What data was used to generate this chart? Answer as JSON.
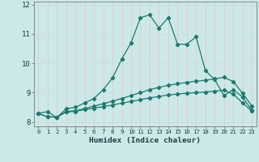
{
  "xlabel": "Humidex (Indice chaleur)",
  "bg_color": "#cce8e8",
  "grid_color": "#b8d8d8",
  "line_color": "#1a7a6e",
  "xlim": [
    -0.5,
    23.5
  ],
  "ylim": [
    7.85,
    12.1
  ],
  "yticks": [
    8,
    9,
    10,
    11,
    12
  ],
  "xticks": [
    0,
    1,
    2,
    3,
    4,
    5,
    6,
    7,
    8,
    9,
    10,
    11,
    12,
    13,
    14,
    15,
    16,
    17,
    18,
    19,
    20,
    21,
    22,
    23
  ],
  "line1_x": [
    0,
    1,
    2,
    3,
    4,
    5,
    6,
    7,
    8,
    9,
    10,
    11,
    12,
    13,
    14,
    15,
    16,
    17,
    18,
    19,
    20,
    21,
    22,
    23
  ],
  "line1_y": [
    8.3,
    8.35,
    8.15,
    8.45,
    8.5,
    8.65,
    8.8,
    9.1,
    9.5,
    10.15,
    10.7,
    11.55,
    11.65,
    11.2,
    11.55,
    10.65,
    10.65,
    10.9,
    9.75,
    9.45,
    8.9,
    9.1,
    8.85,
    8.4
  ],
  "line2_x": [
    0,
    1,
    2,
    3,
    4,
    5,
    6,
    7,
    8,
    9,
    10,
    11,
    12,
    13,
    14,
    15,
    16,
    17,
    18,
    19,
    20,
    21,
    22,
    23
  ],
  "line2_y": [
    8.28,
    8.18,
    8.16,
    8.36,
    8.38,
    8.46,
    8.54,
    8.62,
    8.71,
    8.8,
    8.9,
    9.0,
    9.1,
    9.18,
    9.25,
    9.3,
    9.35,
    9.39,
    9.42,
    9.47,
    9.52,
    9.38,
    8.98,
    8.55
  ],
  "line3_x": [
    0,
    1,
    2,
    3,
    4,
    5,
    6,
    7,
    8,
    9,
    10,
    11,
    12,
    13,
    14,
    15,
    16,
    17,
    18,
    19,
    20,
    21,
    22,
    23
  ],
  "line3_y": [
    8.28,
    8.18,
    8.16,
    8.34,
    8.36,
    8.42,
    8.47,
    8.52,
    8.58,
    8.64,
    8.7,
    8.76,
    8.82,
    8.87,
    8.92,
    8.95,
    8.98,
    9.0,
    9.02,
    9.05,
    9.08,
    8.95,
    8.65,
    8.37
  ]
}
